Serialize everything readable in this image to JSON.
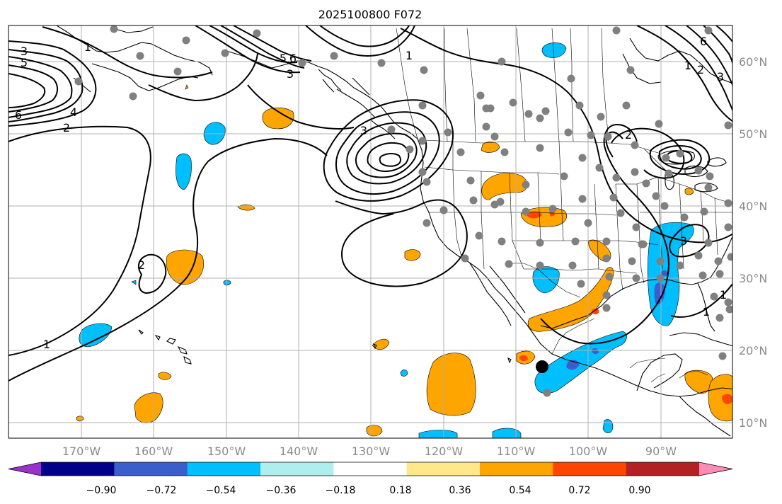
{
  "title": "2025100800 F072",
  "lat_labels": [
    "60°N",
    "50°N",
    "40°N",
    "30°N",
    "20°N",
    "10°N"
  ],
  "lon_labels": [
    "170°W",
    "160°W",
    "150°W",
    "140°W",
    "130°W",
    "120°W",
    "110°W",
    "100°W",
    "90°W"
  ],
  "colorbar": {
    "tick_labels": [
      "−0.90",
      "−0.72",
      "−0.54",
      "−0.36",
      "−0.18",
      "0.18",
      "0.36",
      "0.54",
      "0.72",
      "0.90"
    ],
    "colors": [
      "#9932cc",
      "#00008b",
      "#3a5fcd",
      "#00bfff",
      "#afeeee",
      "#ffffff",
      "#ffe88a",
      "#ffa500",
      "#ff4500",
      "#b22222",
      "#ff8cb4"
    ]
  },
  "contour_labels": [
    "1",
    "3",
    "5",
    "6",
    "4",
    "2",
    "1",
    "3",
    "5",
    "6",
    "3",
    "2",
    "1",
    "2",
    "1",
    "3",
    "1",
    "6",
    "1",
    "2",
    "3"
  ],
  "colors": {
    "land_outline": "#000000",
    "grid": "#b0b0b0",
    "station": "#808080",
    "marker": "#000000"
  }
}
